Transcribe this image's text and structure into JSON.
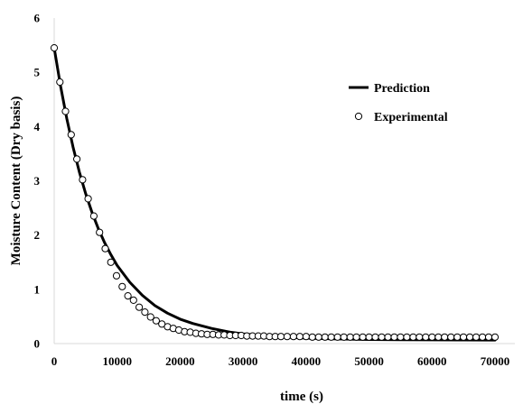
{
  "chart_data": {
    "type": "scatter",
    "title": "",
    "xlabel": "time (s)",
    "ylabel": "Moisture Content (Dry basis)",
    "xlim": [
      0,
      70000
    ],
    "ylim": [
      0,
      6
    ],
    "x_ticks": [
      "0",
      "10000",
      "20000",
      "30000",
      "40000",
      "50000",
      "60000",
      "70000"
    ],
    "y_ticks": [
      "0",
      "1",
      "2",
      "3",
      "4",
      "5",
      "6"
    ],
    "grid": false,
    "legend_position": "right",
    "series": [
      {
        "name": "Prediction",
        "kind": "line",
        "color": "#000000",
        "x": [
          0,
          1000,
          2000,
          3000,
          4000,
          5000,
          6000,
          7000,
          8000,
          9000,
          10000,
          12000,
          14000,
          16000,
          18000,
          20000,
          22000,
          25000,
          28000,
          30000,
          35000,
          40000,
          45000,
          50000,
          55000,
          60000,
          65000,
          70000
        ],
        "y": [
          5.45,
          4.75,
          4.15,
          3.62,
          3.16,
          2.76,
          2.42,
          2.12,
          1.86,
          1.64,
          1.44,
          1.13,
          0.89,
          0.7,
          0.56,
          0.45,
          0.37,
          0.28,
          0.21,
          0.18,
          0.13,
          0.1,
          0.085,
          0.075,
          0.07,
          0.068,
          0.066,
          0.065
        ]
      },
      {
        "name": "Experimental",
        "kind": "scatter",
        "color": "#000000",
        "x": [
          0,
          900,
          1800,
          2700,
          3600,
          4500,
          5400,
          6300,
          7200,
          8100,
          9000,
          9900,
          10800,
          11700,
          12600,
          13500,
          14400,
          15300,
          16200,
          17100,
          18000,
          18900,
          19800,
          20700,
          21600,
          22500,
          23400,
          24300,
          25200,
          26100,
          27000,
          27900,
          28800,
          29700,
          30600,
          31500,
          32400,
          33300,
          34200,
          35100,
          36000,
          37000,
          38000,
          39000,
          40000,
          41000,
          42000,
          43000,
          44000,
          45000,
          46000,
          47000,
          48000,
          49000,
          50000,
          51000,
          52000,
          53000,
          54000,
          55000,
          56000,
          57000,
          58000,
          59000,
          60000,
          61000,
          62000,
          63000,
          64000,
          65000,
          66000,
          67000,
          68000,
          69000,
          70000
        ],
        "y": [
          5.45,
          4.82,
          4.28,
          3.85,
          3.4,
          3.02,
          2.67,
          2.35,
          2.05,
          1.75,
          1.5,
          1.25,
          1.05,
          0.88,
          0.8,
          0.67,
          0.58,
          0.49,
          0.42,
          0.36,
          0.31,
          0.28,
          0.25,
          0.22,
          0.21,
          0.19,
          0.18,
          0.17,
          0.17,
          0.16,
          0.16,
          0.15,
          0.15,
          0.15,
          0.14,
          0.14,
          0.14,
          0.14,
          0.13,
          0.13,
          0.13,
          0.13,
          0.13,
          0.13,
          0.13,
          0.12,
          0.12,
          0.12,
          0.12,
          0.12,
          0.12,
          0.12,
          0.12,
          0.12,
          0.12,
          0.12,
          0.12,
          0.12,
          0.12,
          0.12,
          0.12,
          0.12,
          0.12,
          0.12,
          0.12,
          0.12,
          0.12,
          0.12,
          0.12,
          0.12,
          0.12,
          0.12,
          0.12,
          0.12,
          0.12
        ]
      }
    ]
  }
}
